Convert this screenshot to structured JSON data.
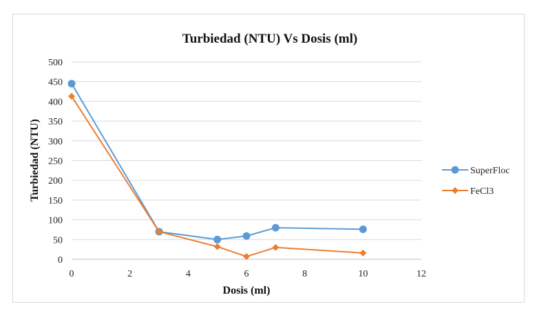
{
  "chart_data": {
    "type": "line",
    "title": "Turbiedad  (NTU) Vs Dosis (ml)",
    "xlabel": "Dosis (ml)",
    "ylabel": "Turbiedad (NTU)",
    "xlim": [
      0,
      12
    ],
    "ylim": [
      0,
      500
    ],
    "xticks": [
      0,
      2,
      4,
      6,
      8,
      10,
      12
    ],
    "yticks": [
      0,
      50,
      100,
      150,
      200,
      250,
      300,
      350,
      400,
      450,
      500
    ],
    "grid": true,
    "legend_position": "right",
    "series": [
      {
        "name": "SuperFloc",
        "color": "#5b9bd5",
        "marker": "circle",
        "points": [
          [
            0,
            445
          ],
          [
            3,
            70
          ],
          [
            5,
            50
          ],
          [
            6,
            59
          ],
          [
            7,
            80
          ],
          [
            10,
            76
          ]
        ]
      },
      {
        "name": "FeCl3",
        "color": "#ed7d31",
        "marker": "diamond",
        "points": [
          [
            0,
            413
          ],
          [
            3,
            70
          ],
          [
            5,
            32
          ],
          [
            6,
            7
          ],
          [
            7,
            30
          ],
          [
            10,
            16
          ]
        ]
      }
    ]
  }
}
